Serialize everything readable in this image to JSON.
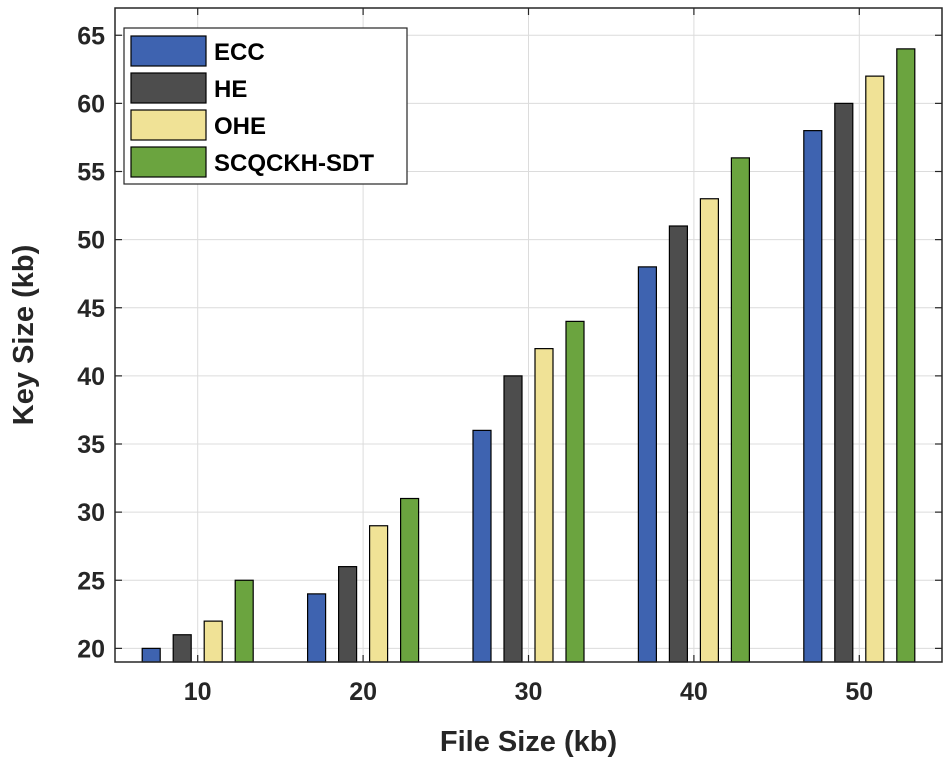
{
  "chart_data": {
    "type": "bar",
    "title": "",
    "xlabel": "File Size (kb)",
    "ylabel": "Key Size (kb)",
    "categories": [
      "10",
      "20",
      "30",
      "40",
      "50"
    ],
    "yticks": [
      "20",
      "25",
      "30",
      "35",
      "40",
      "45",
      "50",
      "55",
      "60",
      "65"
    ],
    "ylim": [
      19,
      67
    ],
    "grid": true,
    "legend_position": "top-left",
    "series": [
      {
        "name": "ECC",
        "color": "#3E63B0",
        "values": [
          20,
          24,
          36,
          48,
          58
        ]
      },
      {
        "name": "HE",
        "color": "#4D4D4D",
        "values": [
          21,
          26,
          40,
          51,
          60
        ]
      },
      {
        "name": "OHE",
        "color": "#F0E296",
        "values": [
          22,
          29,
          42,
          53,
          62
        ]
      },
      {
        "name": "SCQCKH-SDT",
        "color": "#6BA43F",
        "values": [
          25,
          31,
          44,
          56,
          64
        ]
      }
    ]
  }
}
